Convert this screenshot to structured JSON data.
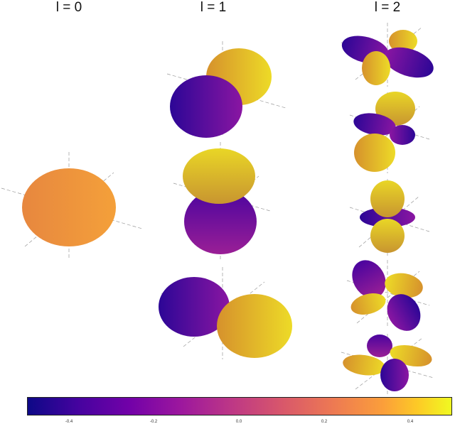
{
  "columns": [
    {
      "title": "l = 0"
    },
    {
      "title": "l = 1"
    },
    {
      "title": "l = 2"
    }
  ],
  "colorbar": {
    "colormap": "plasma",
    "stops": [
      "#0d0887",
      "#46039f",
      "#7201a8",
      "#9c179e",
      "#bd3786",
      "#d8576b",
      "#ed7953",
      "#fb9f3a",
      "#fdca26",
      "#f0f921"
    ],
    "ticks": [
      "-0.4",
      "-0.2",
      "0.0",
      "0.2",
      "0.4"
    ]
  }
}
